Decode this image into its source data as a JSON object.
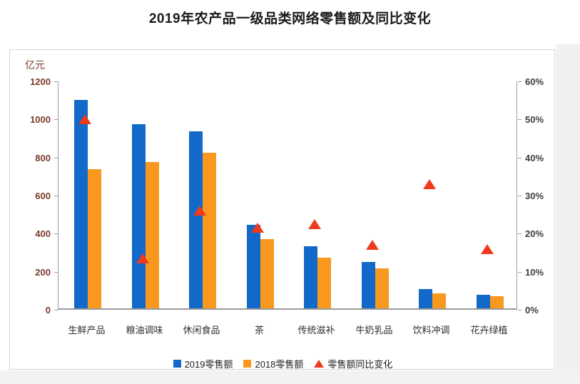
{
  "page_title": "2019年农产品一级品类网络零售额及同比变化",
  "chart_data": {
    "type": "bar",
    "title": "2019年农产品一级品类网络零售额及同比变化",
    "unit_label": "亿元",
    "categories": [
      "生鲜产品",
      "粮油调味",
      "休闲食品",
      "茶",
      "传统滋补",
      "牛奶乳品",
      "饮料冲调",
      "花卉绿植"
    ],
    "series": [
      {
        "name": "2019零售额",
        "type": "bar",
        "axis": "left",
        "color": "#1269c9",
        "values": [
          1095,
          967,
          930,
          438,
          327,
          245,
          101,
          72
        ]
      },
      {
        "name": "2018零售额",
        "type": "bar",
        "axis": "left",
        "color": "#f8981e",
        "values": [
          730,
          770,
          817,
          362,
          268,
          210,
          79,
          63
        ]
      },
      {
        "name": "零售额同比变化",
        "type": "triangle-marker",
        "axis": "right",
        "color": "#ee3a1c",
        "values": [
          50,
          13.5,
          26,
          21.5,
          22.5,
          17,
          33,
          16
        ]
      }
    ],
    "left_axis": {
      "title": "亿元",
      "min": 0,
      "max": 1200,
      "step": 200,
      "tick_labels": [
        "0",
        "200",
        "400",
        "600",
        "800",
        "1000",
        "1200"
      ]
    },
    "right_axis": {
      "min": 0,
      "max": 60,
      "step": 10,
      "tick_labels": [
        "0%",
        "10%",
        "20%",
        "30%",
        "40%",
        "50%",
        "60%"
      ]
    },
    "legend": [
      {
        "label": "2019零售额",
        "marker": "square",
        "color": "#1269c9"
      },
      {
        "label": "2018零售额",
        "marker": "square",
        "color": "#f8981e"
      },
      {
        "label": "零售额同比变化",
        "marker": "triangle",
        "color": "#ee3a1c"
      }
    ],
    "grid": false,
    "legend_position": "bottom"
  },
  "colors": {
    "bar_2019": "#1269c9",
    "bar_2018": "#f8981e",
    "marker_yoy": "#ee3a1c",
    "axis_line": "#9b9b9b",
    "left_axis_text": "#7c3b2b",
    "right_axis_text": "#3d3d3d",
    "panel_border": "#d8d8d8"
  }
}
